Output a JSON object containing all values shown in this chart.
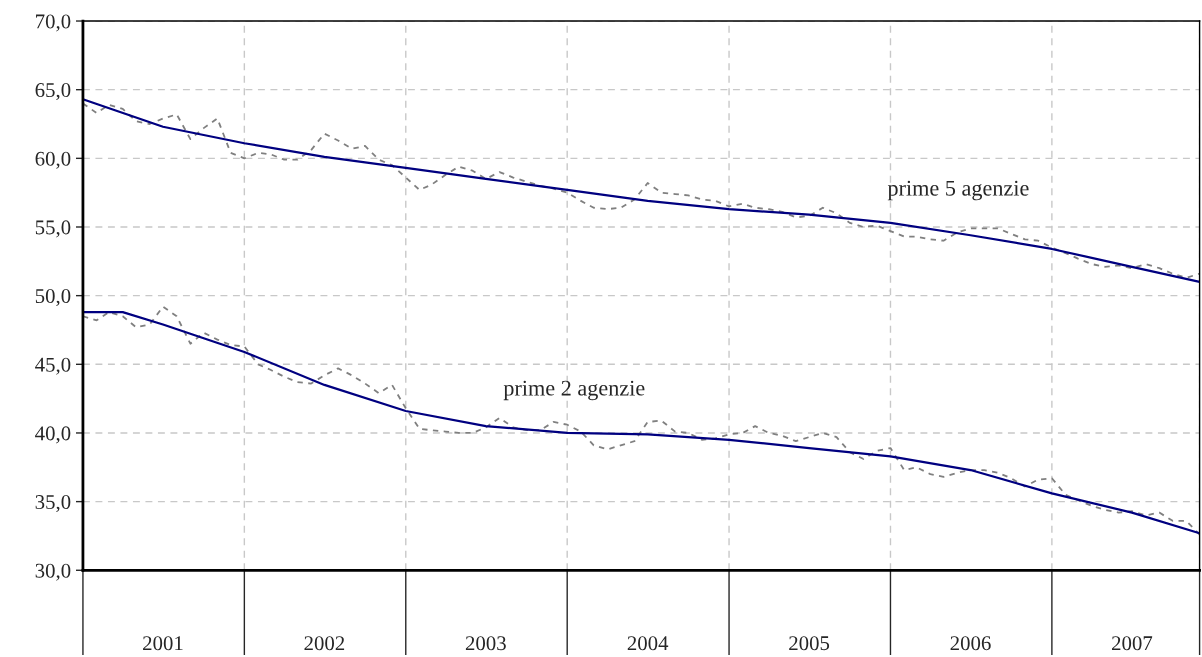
{
  "chart_data": {
    "type": "line",
    "x": [
      "2001-01",
      "2001-02",
      "2001-03",
      "2001-04",
      "2001-05",
      "2001-06",
      "2001-07",
      "2001-08",
      "2001-09",
      "2001-10",
      "2001-11",
      "2001-12",
      "2002-01",
      "2002-02",
      "2002-03",
      "2002-04",
      "2002-05",
      "2002-06",
      "2002-07",
      "2002-08",
      "2002-09",
      "2002-10",
      "2002-11",
      "2002-12",
      "2003-01",
      "2003-02",
      "2003-03",
      "2003-04",
      "2003-05",
      "2003-06",
      "2003-07",
      "2003-08",
      "2003-09",
      "2003-10",
      "2003-11",
      "2003-12",
      "2004-01",
      "2004-02",
      "2004-03",
      "2004-04",
      "2004-05",
      "2004-06",
      "2004-07",
      "2004-08",
      "2004-09",
      "2004-10",
      "2004-11",
      "2004-12",
      "2005-01",
      "2005-02",
      "2005-03",
      "2005-04",
      "2005-05",
      "2005-06",
      "2005-07",
      "2005-08",
      "2005-09",
      "2005-10",
      "2005-11",
      "2005-12",
      "2006-01",
      "2006-02",
      "2006-03",
      "2006-04",
      "2006-05",
      "2006-06",
      "2006-07",
      "2006-08",
      "2006-09",
      "2006-10",
      "2006-11",
      "2006-12",
      "2007-01",
      "2007-02",
      "2007-03",
      "2007-04",
      "2007-05",
      "2007-06",
      "2007-07",
      "2007-08",
      "2007-09",
      "2007-10",
      "2007-11",
      "2007-12"
    ],
    "series": [
      {
        "color": "#808080",
        "line_style": "dashed",
        "values": [
          64.0,
          63.3,
          63.9,
          63.6,
          62.7,
          62.5,
          62.9,
          63.2,
          61.4,
          62.2,
          62.9,
          60.4,
          60.0,
          60.4,
          60.3,
          59.9,
          59.9,
          60.6,
          61.8,
          61.3,
          60.7,
          60.9,
          59.9,
          59.5,
          58.6,
          57.7,
          58.1,
          58.8,
          59.4,
          59.1,
          58.5,
          59.0,
          58.6,
          58.3,
          58.0,
          57.8,
          57.5,
          56.9,
          56.4,
          56.3,
          56.4,
          57.0,
          58.2,
          57.5,
          57.4,
          57.3,
          57.0,
          56.9,
          56.5,
          56.7,
          56.4,
          56.3,
          56.1,
          55.7,
          55.8,
          56.4,
          56.0,
          55.3,
          55.0,
          55.1,
          54.7,
          54.3,
          54.3,
          54.1,
          54.0,
          54.6,
          54.9,
          54.9,
          54.9,
          54.5,
          54.1,
          54.0,
          53.5,
          53.1,
          52.7,
          52.3,
          52.1,
          52.2,
          52.0,
          52.3,
          52.0,
          51.6,
          51.3,
          51.6
        ]
      },
      {
        "color": "#808080",
        "line_style": "dashed",
        "values": [
          48.5,
          48.2,
          48.8,
          48.5,
          47.7,
          47.9,
          49.2,
          48.5,
          46.5,
          47.3,
          46.8,
          46.4,
          46.3,
          45.0,
          44.6,
          44.1,
          43.7,
          43.6,
          44.2,
          44.7,
          44.2,
          43.6,
          42.9,
          43.5,
          41.8,
          40.3,
          40.2,
          40.1,
          40.0,
          40.0,
          40.4,
          41.1,
          40.4,
          40.2,
          40.2,
          40.8,
          40.6,
          40.1,
          39.1,
          38.8,
          39.1,
          39.4,
          40.8,
          40.9,
          40.1,
          40.0,
          39.5,
          39.6,
          39.9,
          40.0,
          40.5,
          40.0,
          39.8,
          39.4,
          39.7,
          40.0,
          39.7,
          38.6,
          38.1,
          38.7,
          38.9,
          37.3,
          37.5,
          37.0,
          36.8,
          37.1,
          37.3,
          37.3,
          37.1,
          36.7,
          36.1,
          36.6,
          36.7,
          35.5,
          35.1,
          34.7,
          34.4,
          34.2,
          34.3,
          34.0,
          34.2,
          33.6,
          33.6,
          32.6
        ]
      },
      {
        "color": "#000080",
        "line_style": "solid",
        "x": [
          "2001-01",
          "2001-07",
          "2002-01",
          "2002-07",
          "2003-01",
          "2003-07",
          "2004-01",
          "2004-07",
          "2005-01",
          "2005-07",
          "2006-01",
          "2006-07",
          "2007-01",
          "2007-07",
          "2007-12"
        ],
        "values": [
          64.3,
          62.3,
          61.1,
          60.1,
          59.3,
          58.5,
          57.7,
          56.9,
          56.3,
          55.9,
          55.3,
          54.4,
          53.4,
          52.1,
          51.0
        ]
      },
      {
        "color": "#000080",
        "line_style": "solid",
        "x": [
          "2001-01",
          "2001-04",
          "2001-07",
          "2001-10",
          "2002-01",
          "2002-07",
          "2003-01",
          "2003-07",
          "2004-01",
          "2004-07",
          "2005-01",
          "2005-07",
          "2006-01",
          "2006-07",
          "2007-01",
          "2007-07",
          "2007-12"
        ],
        "values": [
          48.8,
          48.8,
          47.9,
          46.9,
          45.9,
          43.5,
          41.6,
          40.5,
          40.0,
          39.9,
          39.5,
          38.9,
          38.3,
          37.3,
          35.6,
          34.2,
          32.7
        ]
      }
    ],
    "annotations": [
      "prime 5 agenzie",
      "prime 2 agenzie"
    ],
    "xlim": [
      "2001-01",
      "2007-12"
    ],
    "xticks": [
      {
        "value": "2001-01",
        "label": null
      },
      {
        "value": "2001-07",
        "label": "2001"
      },
      {
        "value": "2002-01",
        "label": null
      },
      {
        "value": "2002-07",
        "label": "2002"
      },
      {
        "value": "2003-01",
        "label": null
      },
      {
        "value": "2003-07",
        "label": "2003"
      },
      {
        "value": "2004-01",
        "label": null
      },
      {
        "value": "2004-07",
        "label": "2004"
      },
      {
        "value": "2005-01",
        "label": null
      },
      {
        "value": "2005-07",
        "label": "2005"
      },
      {
        "value": "2006-01",
        "label": null
      },
      {
        "value": "2006-07",
        "label": "2006"
      },
      {
        "value": "2007-01",
        "label": null
      },
      {
        "value": "2007-07",
        "label": "2007"
      },
      {
        "value": "2007-12",
        "label": null
      }
    ],
    "ylim": [
      30,
      70
    ],
    "yticks": [
      {
        "value": 30,
        "label": "30,0"
      },
      {
        "value": 35,
        "label": "35,0"
      },
      {
        "value": 40,
        "label": "40,0"
      },
      {
        "value": 45,
        "label": "45,0"
      },
      {
        "value": 50,
        "label": "50,0"
      },
      {
        "value": 55,
        "label": "55,0"
      },
      {
        "value": 60,
        "label": "60,0"
      },
      {
        "value": 65,
        "label": "65,0"
      },
      {
        "value": 70,
        "label": "70,0"
      }
    ],
    "grid": true,
    "marker": "none"
  }
}
